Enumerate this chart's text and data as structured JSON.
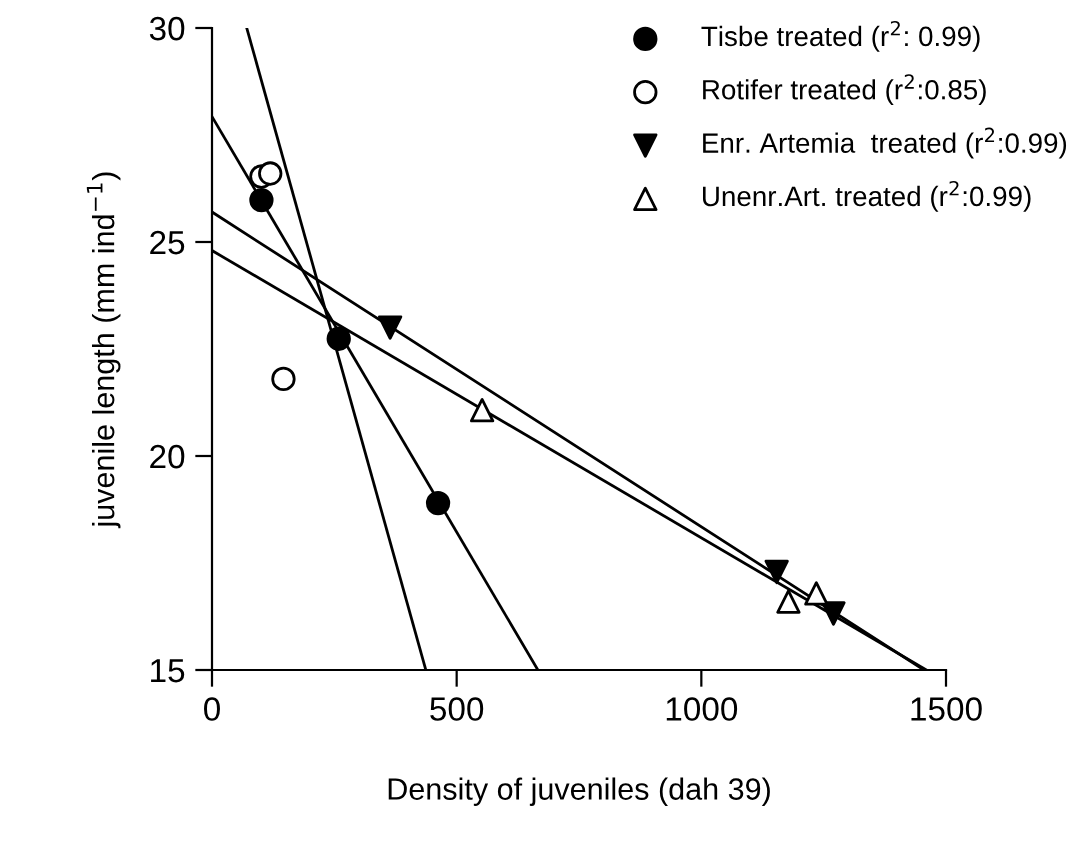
{
  "chart_data": {
    "type": "scatter",
    "xlabel": "Density of juveniles (dah 39)",
    "ylabel": "juvenile length (mm ind$^{−1}$)",
    "xlim": [
      0,
      1500
    ],
    "xticks": [
      0,
      500,
      1000,
      1500
    ],
    "ylim": [
      15,
      30
    ],
    "yticks": [
      15,
      20,
      25,
      30
    ],
    "grid": false,
    "legend": "top right",
    "series": [
      {
        "name": "Tisbe treated (r$^{2}$: 0.99)",
        "marker": "circle",
        "color": "#000000",
        "x": [
          101,
          259,
          462
        ],
        "values": [
          25.98,
          22.74,
          18.9
        ]
      },
      {
        "name": "Rotifer treated (r$^{2}$:0.85)",
        "marker": "circle",
        "color": "#ffffff",
        "x": [
          101,
          119,
          146
        ],
        "values": [
          26.53,
          26.6,
          21.8
        ]
      },
      {
        "name": "Enr. Artemia  treated (r$^{2}$:0.99)",
        "marker": "triangle_down",
        "color": "#000000",
        "x": [
          364,
          1154,
          1270
        ],
        "values": [
          23.0,
          17.29,
          16.32
        ]
      },
      {
        "name": "Unenr.Art. treated (r$^{2}$:0.99)",
        "marker": "triangle",
        "color": "#ffffff",
        "x": [
          552,
          1178,
          1235
        ],
        "values": [
          21.07,
          16.6,
          16.79
        ]
      },
      {
        "type": "line",
        "marker": "none",
        "line_style": "solid",
        "color": "#000000",
        "x": [
          0,
          666
        ],
        "values": [
          27.93,
          15
        ]
      },
      {
        "type": "line",
        "marker": "none",
        "line_style": "solid",
        "color": "#000000",
        "x": [
          71,
          437
        ],
        "values": [
          30,
          15
        ]
      },
      {
        "type": "line",
        "marker": "none",
        "line_style": "solid",
        "color": "#000000",
        "x": [
          0,
          1455
        ],
        "values": [
          25.7,
          15
        ]
      },
      {
        "type": "line",
        "marker": "none",
        "line_style": "solid",
        "color": "#000000",
        "x": [
          0,
          1460
        ],
        "values": [
          24.8,
          15
        ]
      }
    ]
  }
}
